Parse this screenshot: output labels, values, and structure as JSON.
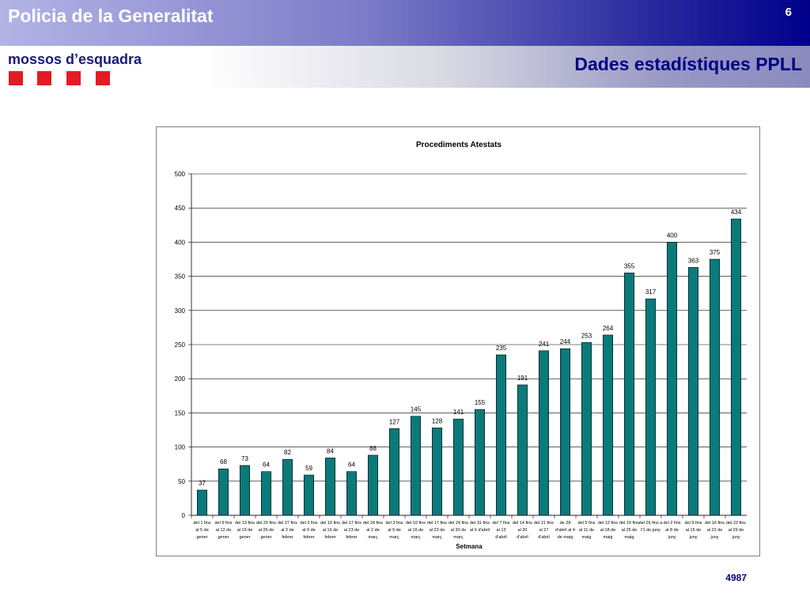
{
  "header": {
    "title": "Policia de la Generalitat",
    "page_number": "6",
    "subtitle": "Dades estadístiques PPLL",
    "brand": "mossos d’esquadra",
    "brand_color": "#e31b23",
    "title_color": "#000080"
  },
  "chart_data": {
    "type": "bar",
    "title": "Procediments Atestats",
    "xlabel": "Setmana",
    "ylabel": "",
    "ylim": [
      0,
      500
    ],
    "yticks": [
      0,
      50,
      100,
      150,
      200,
      250,
      300,
      350,
      400,
      450,
      500
    ],
    "grid": true,
    "bar_color": "#0b7a7a",
    "categories": [
      [
        "del 1 fins",
        "al 5 de",
        "gener"
      ],
      [
        "del 6 fins",
        "al 12 de",
        "gener"
      ],
      [
        "del 13 fins",
        "al 19 de",
        "gener"
      ],
      [
        "del 20 fins",
        "al 26 de",
        "gener"
      ],
      [
        "del 27 fins",
        "al 2 de",
        "febrer"
      ],
      [
        "del 3 fins",
        "al 9 de",
        "febrer"
      ],
      [
        "del 10 fins",
        "al 16 de",
        "febrer"
      ],
      [
        "del 17 fins",
        "al 23 de",
        "febrer"
      ],
      [
        "del 24 fins",
        "al 2 de",
        "març"
      ],
      [
        "del 3 fins",
        "al 9 de",
        "març"
      ],
      [
        "del 10 fins",
        "al 16 de",
        "març"
      ],
      [
        "del 17 fins",
        "al 23 de",
        "març"
      ],
      [
        "del 24 fins",
        "al 30 de",
        "març"
      ],
      [
        "del 31 fins",
        "al 6 d'abril",
        ""
      ],
      [
        "del 7 fins",
        "al 13",
        "d'abril"
      ],
      [
        "del 14 fins",
        "al 20",
        "d'abril"
      ],
      [
        "del 21 fins",
        "al 27",
        "d'abril"
      ],
      [
        "de 28",
        "d'abril al 4",
        "de maig"
      ],
      [
        "del 5 fins",
        "al 11 de",
        "maig"
      ],
      [
        "del 12 fins",
        "al 18 de",
        "maig"
      ],
      [
        "del 19 fins",
        "al 25 de",
        "maig"
      ],
      [
        "del 26 fins a",
        "l'1 de juny",
        ""
      ],
      [
        "del 2 fins",
        "al 8 de",
        "juny"
      ],
      [
        "del 9 fins",
        "al 15 de",
        "juny"
      ],
      [
        "del 16 fins",
        "al 22 de",
        "juny"
      ],
      [
        "del 23 fins",
        "al 29 de",
        "juny"
      ]
    ],
    "values": [
      37,
      68,
      73,
      64,
      82,
      59,
      84,
      64,
      88,
      127,
      145,
      128,
      141,
      155,
      235,
      191,
      241,
      244,
      253,
      264,
      355,
      317,
      400,
      363,
      375,
      434
    ]
  },
  "footer": {
    "number": "4987"
  }
}
